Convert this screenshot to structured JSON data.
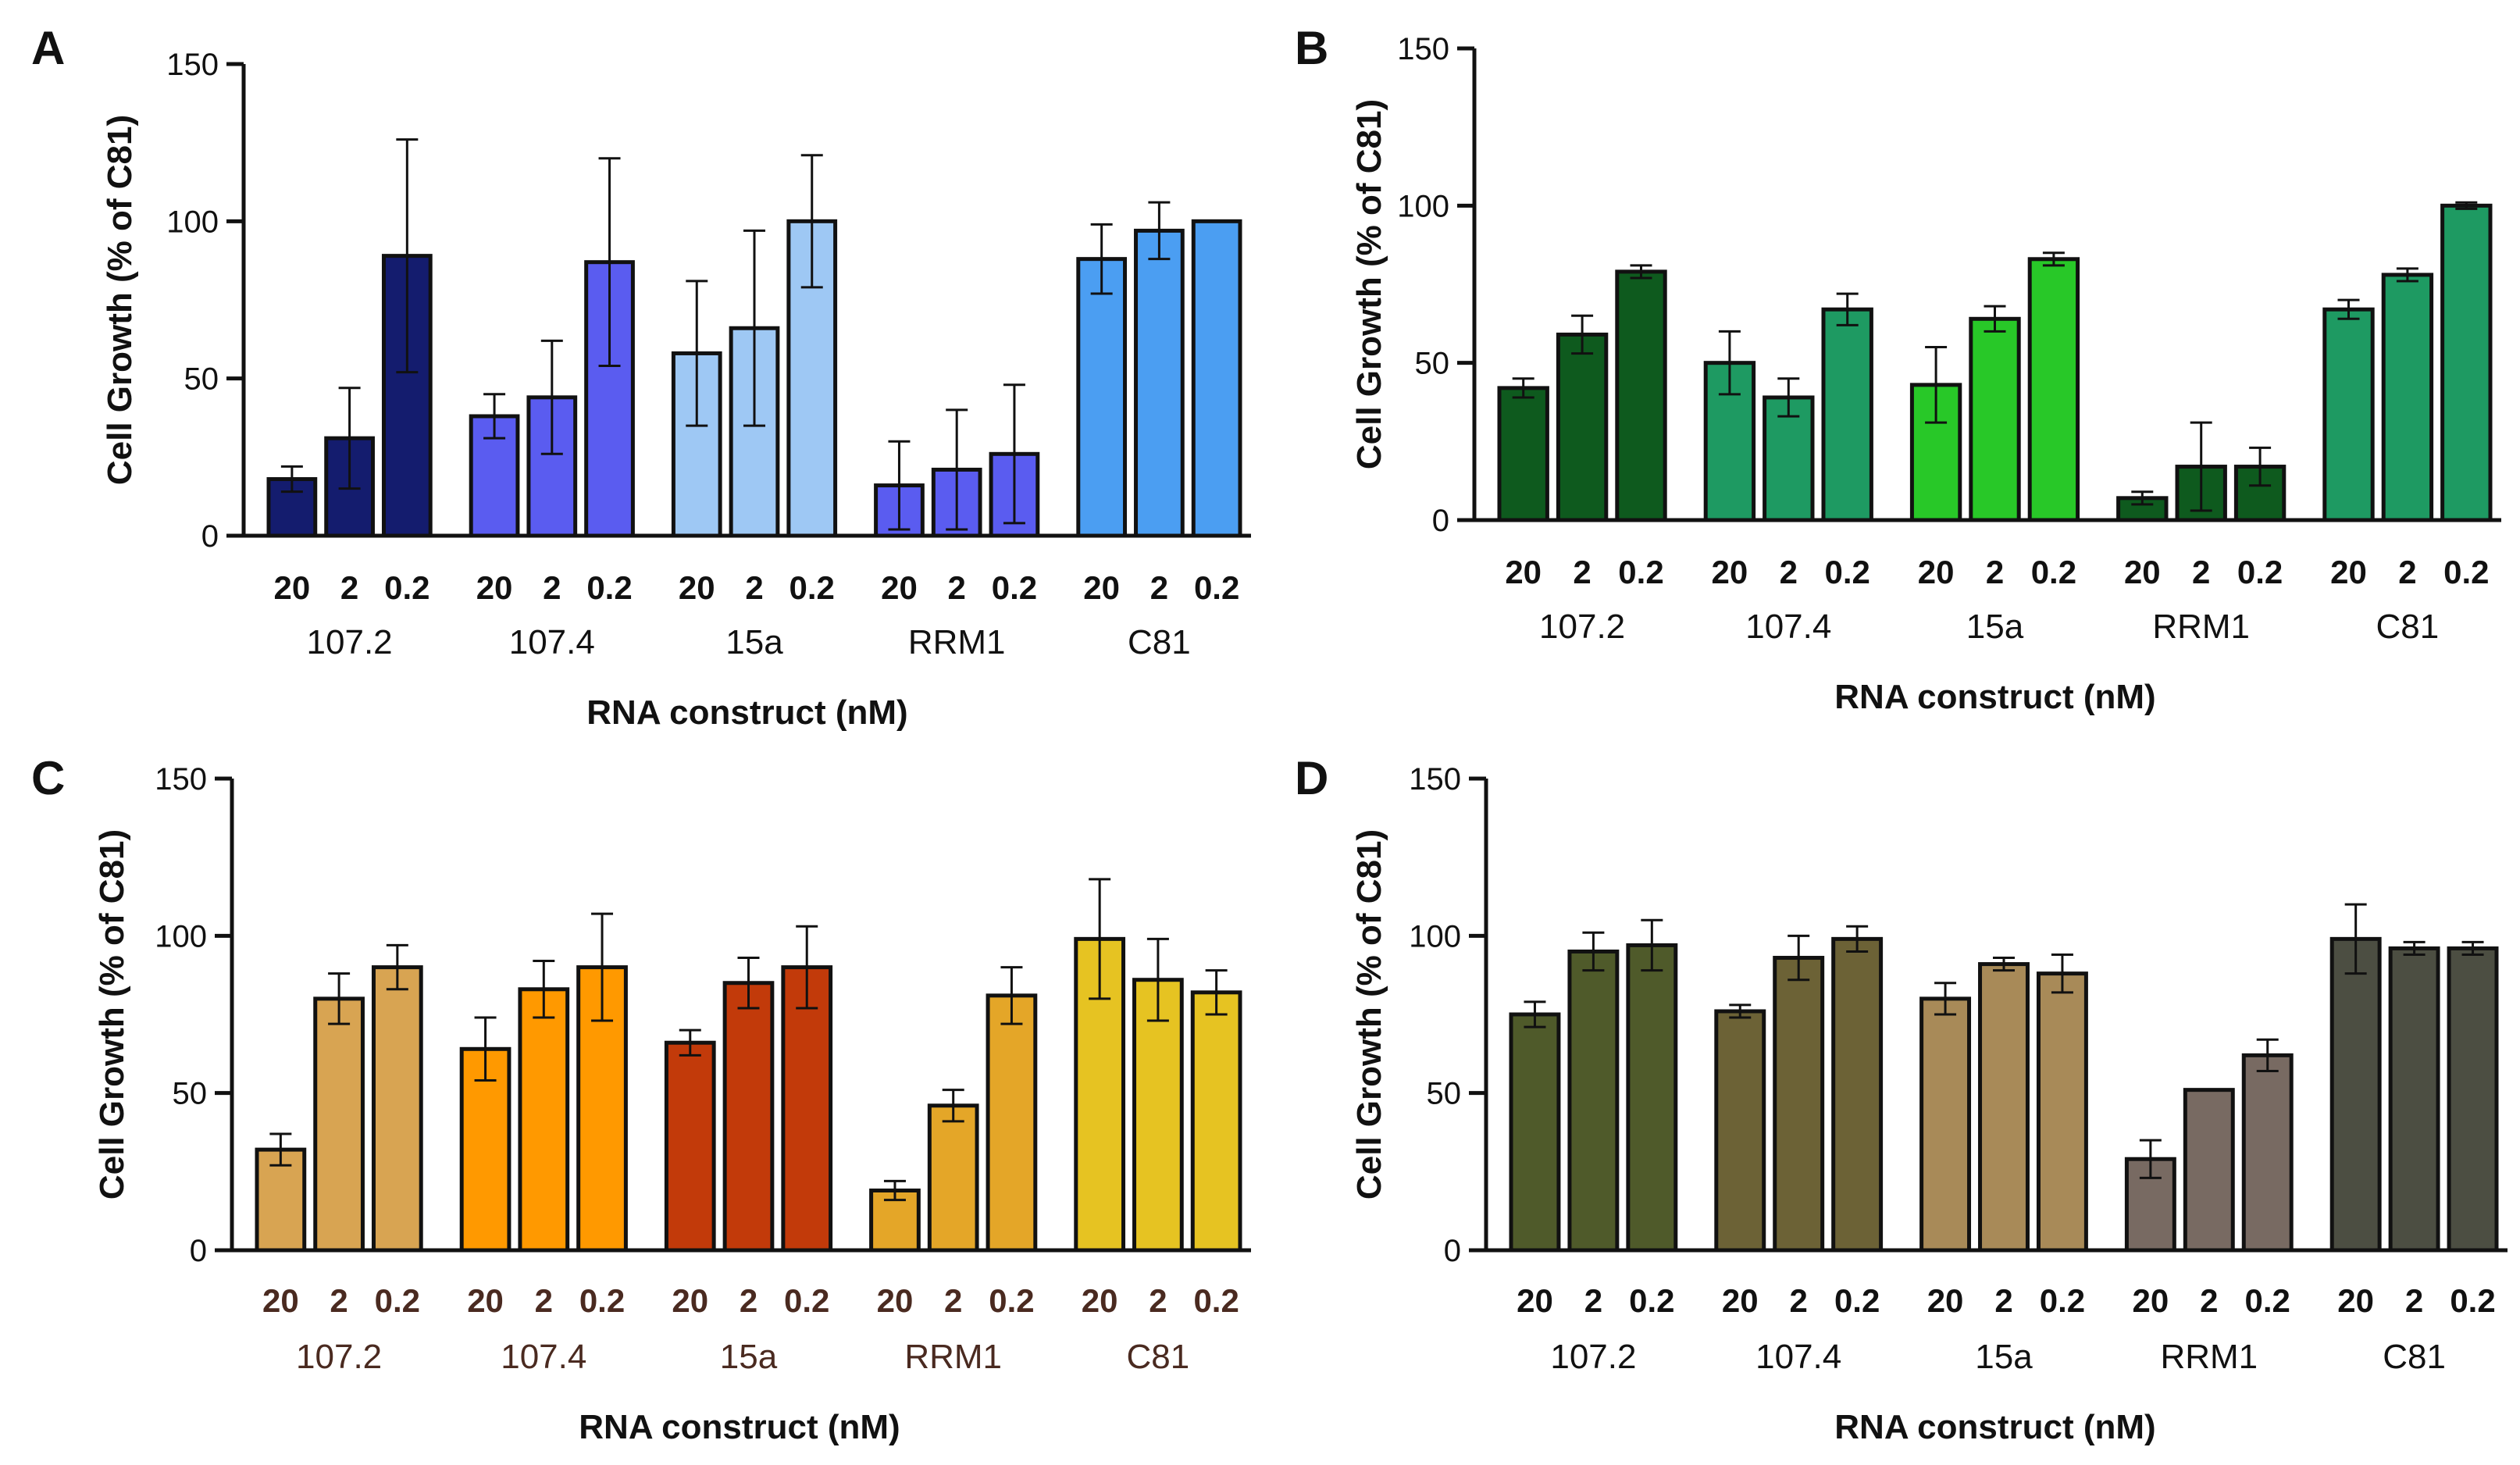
{
  "chart_data": [
    {
      "panel": "A",
      "type": "bar",
      "ylabel": "Cell Growth (%  of C81)",
      "xlabel": "RNA construct (nM)",
      "ylim": [
        0,
        150
      ],
      "yticks": [
        0,
        50,
        100,
        150
      ],
      "doses": [
        "20",
        "2",
        "0.2"
      ],
      "tick_color": "#111111",
      "groups": [
        {
          "name": "107.2",
          "color": "#141c6e",
          "values": [
            18,
            31,
            89
          ],
          "errors": [
            4,
            16,
            37
          ]
        },
        {
          "name": "107.4",
          "color": "#5a5cf0",
          "values": [
            38,
            44,
            87
          ],
          "errors": [
            7,
            18,
            33
          ]
        },
        {
          "name": "15a",
          "color": "#9ec8f4",
          "values": [
            58,
            66,
            100
          ],
          "errors": [
            23,
            31,
            21
          ]
        },
        {
          "name": "RRM1",
          "color": "#5a5cf0",
          "values": [
            16,
            21,
            26
          ],
          "errors": [
            14,
            19,
            22
          ]
        },
        {
          "name": "C81",
          "color": "#4b9ef2",
          "values": [
            88,
            97,
            100
          ],
          "errors": [
            11,
            9,
            0
          ]
        }
      ]
    },
    {
      "panel": "B",
      "type": "bar",
      "ylabel": "Cell Growth (%  of C81)",
      "xlabel": "RNA construct (nM)",
      "ylim": [
        0,
        150
      ],
      "yticks": [
        0,
        50,
        100,
        150
      ],
      "doses": [
        "20",
        "2",
        "0.2"
      ],
      "tick_color": "#111111",
      "groups": [
        {
          "name": "107.2",
          "color": "#0e5a1e",
          "values": [
            42,
            59,
            79
          ],
          "errors": [
            3,
            6,
            2
          ]
        },
        {
          "name": "107.4",
          "color": "#1e9a62",
          "values": [
            50,
            39,
            67
          ],
          "errors": [
            10,
            6,
            5
          ]
        },
        {
          "name": "15a",
          "color": "#28c828",
          "values": [
            43,
            64,
            83
          ],
          "errors": [
            12,
            4,
            2
          ]
        },
        {
          "name": "RRM1",
          "color": "#0e5a1e",
          "values": [
            7,
            17,
            17
          ],
          "errors": [
            2,
            14,
            6
          ]
        },
        {
          "name": "C81",
          "color": "#1e9a62",
          "values": [
            67,
            78,
            100
          ],
          "errors": [
            3,
            2,
            1
          ]
        }
      ]
    },
    {
      "panel": "C",
      "type": "bar",
      "ylabel": "Cell Growth (%  of C81)",
      "xlabel": "RNA construct (nM)",
      "ylim": [
        0,
        150
      ],
      "yticks": [
        0,
        50,
        100,
        150
      ],
      "doses": [
        "20",
        "2",
        "0.2"
      ],
      "tick_color": "#4a2a20",
      "groups": [
        {
          "name": "107.2",
          "color": "#d8a452",
          "values": [
            32,
            80,
            90
          ],
          "errors": [
            5,
            8,
            7
          ]
        },
        {
          "name": "107.4",
          "color": "#ff9900",
          "values": [
            64,
            83,
            90
          ],
          "errors": [
            10,
            9,
            17
          ]
        },
        {
          "name": "15a",
          "color": "#c23a0a",
          "values": [
            66,
            85,
            90
          ],
          "errors": [
            4,
            8,
            13
          ]
        },
        {
          "name": "RRM1",
          "color": "#e4a628",
          "values": [
            19,
            46,
            81
          ],
          "errors": [
            3,
            5,
            9
          ]
        },
        {
          "name": "C81",
          "color": "#e6c322",
          "values": [
            99,
            86,
            82
          ],
          "errors": [
            19,
            13,
            7
          ]
        }
      ]
    },
    {
      "panel": "D",
      "type": "bar",
      "ylabel": "Cell Growth (%  of C81)",
      "xlabel": "RNA construct (nM)",
      "ylim": [
        0,
        150
      ],
      "yticks": [
        0,
        50,
        100,
        150
      ],
      "doses": [
        "20",
        "2",
        "0.2"
      ],
      "tick_color": "#111111",
      "groups": [
        {
          "name": "107.2",
          "color": "#4f5a2a",
          "values": [
            75,
            95,
            97
          ],
          "errors": [
            4,
            6,
            8
          ]
        },
        {
          "name": "107.4",
          "color": "#6c6236",
          "values": [
            76,
            93,
            99
          ],
          "errors": [
            2,
            7,
            4
          ]
        },
        {
          "name": "15a",
          "color": "#a88a58",
          "values": [
            80,
            91,
            88
          ],
          "errors": [
            5,
            2,
            6
          ]
        },
        {
          "name": "RRM1",
          "color": "#786a62",
          "values": [
            29,
            51,
            62
          ],
          "errors": [
            6,
            0,
            5
          ]
        },
        {
          "name": "C81",
          "color": "#4c4e42",
          "values": [
            99,
            96,
            96
          ],
          "errors": [
            11,
            2,
            2
          ]
        }
      ]
    }
  ]
}
